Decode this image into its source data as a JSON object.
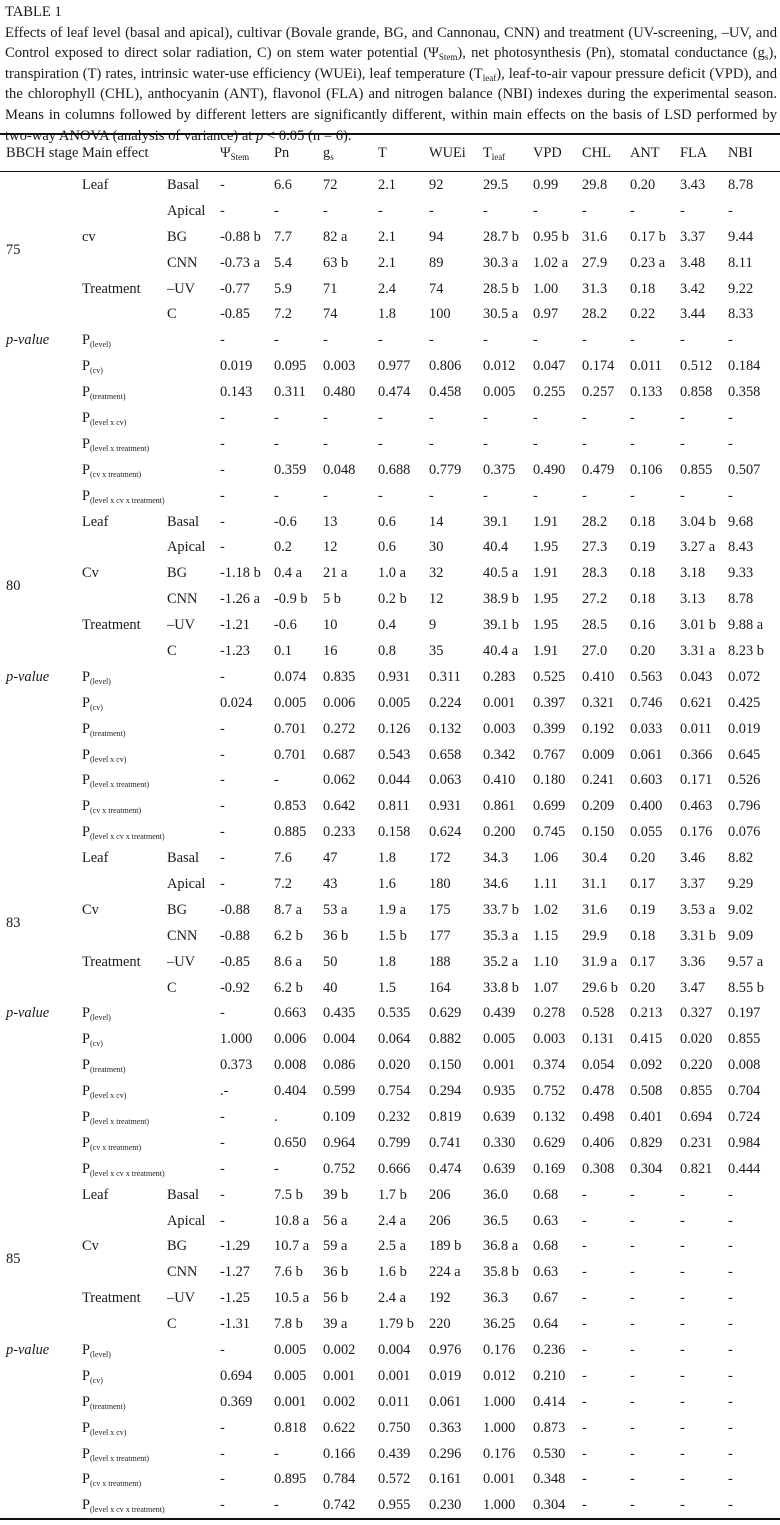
{
  "caption": {
    "title": "TABLE 1",
    "parts": [
      {
        "t": "Effects of leaf level (basal and apical), cultivar (Bovale grande, BG, and Cannonau, CNN) and treatment (UV-screening, –UV, and Control exposed to direct solar radiation, C) on stem water potential (Ψ"
      },
      {
        "t": "Stem",
        "sub": true
      },
      {
        "t": "), net photosynthesis (Pn), stomatal conductance (g"
      },
      {
        "t": "s",
        "sub": true
      },
      {
        "t": "), transpiration (T) rates, intrinsic water-use efficiency (WUEi), leaf temperature (T"
      },
      {
        "t": "leaf",
        "sub": true
      },
      {
        "t": "), leaf-to-air vapour pressure deficit (VPD), and the chlorophyll (CHL), anthocyanin (ANT), flavonol (FLA) and nitrogen balance (NBI) indexes during the experimental season. Means in columns followed by different letters are significantly different, within main effects on the basis of LSD performed by two-way ANOVA (analysis of variance) at "
      },
      {
        "t": "p",
        "i": true
      },
      {
        "t": " < 0.05 (n = 6)."
      }
    ]
  },
  "header": {
    "stage": "BBCH stage",
    "main_effect": "Main effect",
    "columns": [
      {
        "main": "Ψ",
        "sub": "Stem"
      },
      {
        "main": "Pn",
        "sub": ""
      },
      {
        "main": "g",
        "sub": "s"
      },
      {
        "main": "T",
        "sub": ""
      },
      {
        "main": "WUEi",
        "sub": ""
      },
      {
        "main": "T",
        "sub": "leaf"
      },
      {
        "main": "VPD",
        "sub": ""
      },
      {
        "main": "CHL",
        "sub": ""
      },
      {
        "main": "ANT",
        "sub": ""
      },
      {
        "main": "FLA",
        "sub": ""
      },
      {
        "main": "NBI",
        "sub": ""
      }
    ]
  },
  "pvalue_label": "p-value",
  "stages": [
    {
      "stage": "75",
      "rows": [
        {
          "effect": "Leaf",
          "level": "Basal",
          "values": [
            "-",
            "6.6",
            "72",
            "2.1",
            "92",
            "29.5",
            "0.99",
            "29.8",
            "0.20",
            "3.43",
            "8.78"
          ]
        },
        {
          "effect": "",
          "level": "Apical",
          "values": [
            "-",
            "-",
            "-",
            "-",
            "-",
            "-",
            "-",
            "-",
            "-",
            "-",
            "-"
          ]
        },
        {
          "effect": "cv",
          "level": "BG",
          "values": [
            "-0.88 b",
            "7.7",
            "82 a",
            "2.1",
            "94",
            "28.7 b",
            "0.95 b",
            "31.6",
            "0.17 b",
            "3.37",
            "9.44"
          ]
        },
        {
          "effect": "",
          "level": "CNN",
          "values": [
            "-0.73 a",
            "5.4",
            "63 b",
            "2.1",
            "89",
            "30.3 a",
            "1.02 a",
            "27.9",
            "0.23 a",
            "3.48",
            "8.11"
          ]
        },
        {
          "effect": "Treatment",
          "level": "–UV",
          "values": [
            "-0.77",
            "5.9",
            "71",
            "2.4",
            "74",
            "28.5 b",
            "1.00",
            "31.3",
            "0.18",
            "3.42",
            "9.22"
          ]
        },
        {
          "effect": "",
          "level": "C",
          "values": [
            "-0.85",
            "7.2",
            "74",
            "1.8",
            "100",
            "30.5 a",
            "0.97",
            "28.2",
            "0.22",
            "3.44",
            "8.33"
          ]
        }
      ],
      "prows": [
        {
          "p": "P",
          "sub": "(level)",
          "values": [
            "-",
            "-",
            "-",
            "-",
            "-",
            "-",
            "-",
            "-",
            "-",
            "-",
            "-"
          ]
        },
        {
          "p": "P",
          "sub": "(cv)",
          "values": [
            "0.019",
            "0.095",
            "0.003",
            "0.977",
            "0.806",
            "0.012",
            "0.047",
            "0.174",
            "0.011",
            "0.512",
            "0.184"
          ]
        },
        {
          "p": "P",
          "sub": "(treatment)",
          "values": [
            "0.143",
            "0.311",
            "0.480",
            "0.474",
            "0.458",
            "0.005",
            "0.255",
            "0.257",
            "0.133",
            "0.858",
            "0.358"
          ]
        },
        {
          "p": "P",
          "sub": "(level x cv)",
          "values": [
            "-",
            "-",
            "-",
            "-",
            "-",
            "-",
            "-",
            "-",
            "-",
            "-",
            "-"
          ]
        },
        {
          "p": "P",
          "sub": "(level x treatment)",
          "values": [
            "-",
            "-",
            "-",
            "-",
            "-",
            "-",
            "-",
            "-",
            "-",
            "-",
            "-"
          ]
        },
        {
          "p": "P",
          "sub": "(cv x treatment)",
          "values": [
            "-",
            "0.359",
            "0.048",
            "0.688",
            "0.779",
            "0.375",
            "0.490",
            "0.479",
            "0.106",
            "0.855",
            "0.507"
          ]
        },
        {
          "p": "P",
          "sub": "(level x cv x treatment)",
          "values": [
            "-",
            "-",
            "-",
            "-",
            "-",
            "-",
            "-",
            "-",
            "-",
            "-",
            "-"
          ]
        }
      ]
    },
    {
      "stage": "80",
      "rows": [
        {
          "effect": "Leaf",
          "level": "Basal",
          "values": [
            "-",
            "-0.6",
            "13",
            "0.6",
            "14",
            "39.1",
            "1.91",
            "28.2",
            "0.18",
            "3.04 b",
            "9.68"
          ]
        },
        {
          "effect": "",
          "level": "Apical",
          "values": [
            "-",
            "0.2",
            "12",
            "0.6",
            "30",
            "40.4",
            "1.95",
            "27.3",
            "0.19",
            "3.27 a",
            "8.43"
          ]
        },
        {
          "effect": "Cv",
          "level": "BG",
          "values": [
            "-1.18 b",
            "0.4 a",
            "21 a",
            "1.0 a",
            "32",
            "40.5 a",
            "1.91",
            "28.3",
            "0.18",
            "3.18",
            "9.33"
          ]
        },
        {
          "effect": "",
          "level": "CNN",
          "values": [
            "-1.26 a",
            "-0.9 b",
            "5 b",
            "0.2 b",
            "12",
            "38.9 b",
            "1.95",
            "27.2",
            "0.18",
            "3.13",
            "8.78"
          ]
        },
        {
          "effect": "Treatment",
          "level": "–UV",
          "values": [
            "-1.21",
            "-0.6",
            "10",
            "0.4",
            "9",
            "39.1 b",
            "1.95",
            "28.5",
            "0.16",
            "3.01 b",
            "9.88 a"
          ]
        },
        {
          "effect": "",
          "level": "C",
          "values": [
            "-1.23",
            "0.1",
            "16",
            "0.8",
            "35",
            "40.4 a",
            "1.91",
            "27.0",
            "0.20",
            "3.31 a",
            "8.23 b"
          ]
        }
      ],
      "prows": [
        {
          "p": "P",
          "sub": "(level)",
          "values": [
            "-",
            "0.074",
            "0.835",
            "0.931",
            "0.311",
            "0.283",
            "0.525",
            "0.410",
            "0.563",
            "0.043",
            "0.072"
          ]
        },
        {
          "p": "P",
          "sub": "(cv)",
          "values": [
            "0.024",
            "0.005",
            "0.006",
            "0.005",
            "0.224",
            "0.001",
            "0.397",
            "0.321",
            "0.746",
            "0.621",
            "0.425"
          ]
        },
        {
          "p": "P",
          "sub": "(treatment)",
          "values": [
            "-",
            "0.701",
            "0.272",
            "0.126",
            "0.132",
            "0.003",
            "0.399",
            "0.192",
            "0.033",
            "0.011",
            "0.019"
          ]
        },
        {
          "p": "P",
          "sub": "(level x cv)",
          "values": [
            "-",
            "0.701",
            "0.687",
            "0.543",
            "0.658",
            "0.342",
            "0.767",
            "0.009",
            "0.061",
            "0.366",
            "0.645"
          ]
        },
        {
          "p": "P",
          "sub": "(level x treatment)",
          "values": [
            "-",
            "-",
            "0.062",
            "0.044",
            "0.063",
            "0.410",
            "0.180",
            "0.241",
            "0.603",
            "0.171",
            "0.526"
          ]
        },
        {
          "p": "P",
          "sub": "(cv x treatment)",
          "values": [
            "-",
            "0.853",
            "0.642",
            "0.811",
            "0.931",
            "0.861",
            "0.699",
            "0.209",
            "0.400",
            "0.463",
            "0.796"
          ]
        },
        {
          "p": "P",
          "sub": "(level x cv x treatment)",
          "values": [
            "-",
            "0.885",
            "0.233",
            "0.158",
            "0.624",
            "0.200",
            "0.745",
            "0.150",
            "0.055",
            "0.176",
            "0.076"
          ]
        }
      ]
    },
    {
      "stage": "83",
      "rows": [
        {
          "effect": "Leaf",
          "level": "Basal",
          "values": [
            "-",
            "7.6",
            "47",
            "1.8",
            "172",
            "34.3",
            "1.06",
            "30.4",
            "0.20",
            "3.46",
            "8.82"
          ]
        },
        {
          "effect": "",
          "level": "Apical",
          "values": [
            "-",
            "7.2",
            "43",
            "1.6",
            "180",
            "34.6",
            "1.11",
            "31.1",
            "0.17",
            "3.37",
            "9.29"
          ]
        },
        {
          "effect": "Cv",
          "level": "BG",
          "values": [
            "-0.88",
            "8.7 a",
            "53 a",
            "1.9 a",
            "175",
            "33.7 b",
            "1.02",
            "31.6",
            "0.19",
            "3.53 a",
            "9.02"
          ]
        },
        {
          "effect": "",
          "level": "CNN",
          "values": [
            "-0.88",
            "6.2 b",
            "36 b",
            "1.5 b",
            "177",
            "35.3 a",
            "1.15",
            "29.9",
            "0.18",
            "3.31 b",
            "9.09"
          ]
        },
        {
          "effect": "Treatment",
          "level": "–UV",
          "values": [
            "-0.85",
            "8.6 a",
            "50",
            "1.8",
            "188",
            "35.2 a",
            "1.10",
            "31.9 a",
            "0.17",
            "3.36",
            "9.57 a"
          ]
        },
        {
          "effect": "",
          "level": "C",
          "values": [
            "-0.92",
            "6.2 b",
            "40",
            "1.5",
            "164",
            "33.8 b",
            "1.07",
            "29.6 b",
            "0.20",
            "3.47",
            "8.55 b"
          ]
        }
      ],
      "prows": [
        {
          "p": "P",
          "sub": "(level)",
          "values": [
            "-",
            "0.663",
            "0.435",
            "0.535",
            "0.629",
            "0.439",
            "0.278",
            "0.528",
            "0.213",
            "0.327",
            "0.197"
          ]
        },
        {
          "p": "P",
          "sub": "(cv)",
          "values": [
            "1.000",
            "0.006",
            "0.004",
            "0.064",
            "0.882",
            "0.005",
            "0.003",
            "0.131",
            "0.415",
            "0.020",
            "0.855"
          ]
        },
        {
          "p": "P",
          "sub": "(treatment)",
          "values": [
            "0.373",
            "0.008",
            "0.086",
            "0.020",
            "0.150",
            "0.001",
            "0.374",
            "0.054",
            "0.092",
            "0.220",
            "0.008"
          ]
        },
        {
          "p": "P",
          "sub": "(level x cv)",
          "values": [
            ".-",
            "0.404",
            "0.599",
            "0.754",
            "0.294",
            "0.935",
            "0.752",
            "0.478",
            "0.508",
            "0.855",
            "0.704"
          ]
        },
        {
          "p": "P",
          "sub": "(level x treatment)",
          "values": [
            "-",
            ".",
            "0.109",
            "0.232",
            "0.819",
            "0.639",
            "0.132",
            "0.498",
            "0.401",
            "0.694",
            "0.724"
          ]
        },
        {
          "p": "P",
          "sub": "(cv x treatment)",
          "values": [
            "-",
            "0.650",
            "0.964",
            "0.799",
            "0.741",
            "0.330",
            "0.629",
            "0.406",
            "0.829",
            "0.231",
            "0.984"
          ]
        },
        {
          "p": "P",
          "sub": "(level x cv x treatment)",
          "values": [
            "-",
            "-",
            "0.752",
            "0.666",
            "0.474",
            "0.639",
            "0.169",
            "0.308",
            "0.304",
            "0.821",
            "0.444"
          ]
        }
      ]
    },
    {
      "stage": "85",
      "rows": [
        {
          "effect": "Leaf",
          "level": "Basal",
          "values": [
            "-",
            "7.5 b",
            "39 b",
            "1.7 b",
            "206",
            "36.0",
            "0.68",
            "-",
            "-",
            "-",
            "-"
          ]
        },
        {
          "effect": "",
          "level": "Apical",
          "values": [
            "-",
            "10.8 a",
            "56 a",
            "2.4 a",
            "206",
            "36.5",
            "0.63",
            "-",
            "-",
            "-",
            "-"
          ]
        },
        {
          "effect": "Cv",
          "level": "BG",
          "values": [
            "-1.29",
            "10.7 a",
            "59 a",
            "2.5 a",
            "189 b",
            "36.8 a",
            "0.68",
            "-",
            "-",
            "-",
            "-"
          ]
        },
        {
          "effect": "",
          "level": "CNN",
          "values": [
            "-1.27",
            "7.6 b",
            "36 b",
            "1.6 b",
            "224 a",
            "35.8 b",
            "0.63",
            "-",
            "-",
            "-",
            "-"
          ]
        },
        {
          "effect": "Treatment",
          "level": "–UV",
          "values": [
            "-1.25",
            "10.5 a",
            "56 b",
            "2.4 a",
            "192",
            "36.3",
            "0.67",
            "-",
            "-",
            "-",
            "-"
          ]
        },
        {
          "effect": "",
          "level": "C",
          "values": [
            "-1.31",
            "7.8 b",
            "39 a",
            "1.79 b",
            "220",
            "36.25",
            "0.64",
            "-",
            "-",
            "-",
            "-"
          ]
        }
      ],
      "prows": [
        {
          "p": "P",
          "sub": "(level)",
          "values": [
            "-",
            "0.005",
            "0.002",
            "0.004",
            "0.976",
            "0.176",
            "0.236",
            "-",
            "-",
            "-",
            "-"
          ]
        },
        {
          "p": "P",
          "sub": "(cv)",
          "values": [
            "0.694",
            "0.005",
            "0.001",
            "0.001",
            "0.019",
            "0.012",
            "0.210",
            "-",
            "-",
            "-",
            "-"
          ]
        },
        {
          "p": "P",
          "sub": "(treatment)",
          "values": [
            "0.369",
            "0.001",
            "0.002",
            "0.011",
            "0.061",
            "1.000",
            "0.414",
            "-",
            "-",
            "-",
            "-"
          ]
        },
        {
          "p": "P",
          "sub": "(level x cv)",
          "values": [
            "-",
            "0.818",
            "0.622",
            "0.750",
            "0.363",
            "1.000",
            "0.873",
            "-",
            "-",
            "-",
            "-"
          ]
        },
        {
          "p": "P",
          "sub": "(level x treatment)",
          "values": [
            "-",
            "-",
            "0.166",
            "0.439",
            "0.296",
            "0.176",
            "0.530",
            "-",
            "-",
            "-",
            "-"
          ]
        },
        {
          "p": "P",
          "sub": "(cv x treatment)",
          "values": [
            "-",
            "0.895",
            "0.784",
            "0.572",
            "0.161",
            "0.001",
            "0.348",
            "-",
            "-",
            "-",
            "-"
          ]
        },
        {
          "p": "P",
          "sub": "(level x cv x treatment)",
          "values": [
            "-",
            "-",
            "0.742",
            "0.955",
            "0.230",
            "1.000",
            "0.304",
            "-",
            "-",
            "-",
            "-"
          ]
        }
      ]
    }
  ]
}
